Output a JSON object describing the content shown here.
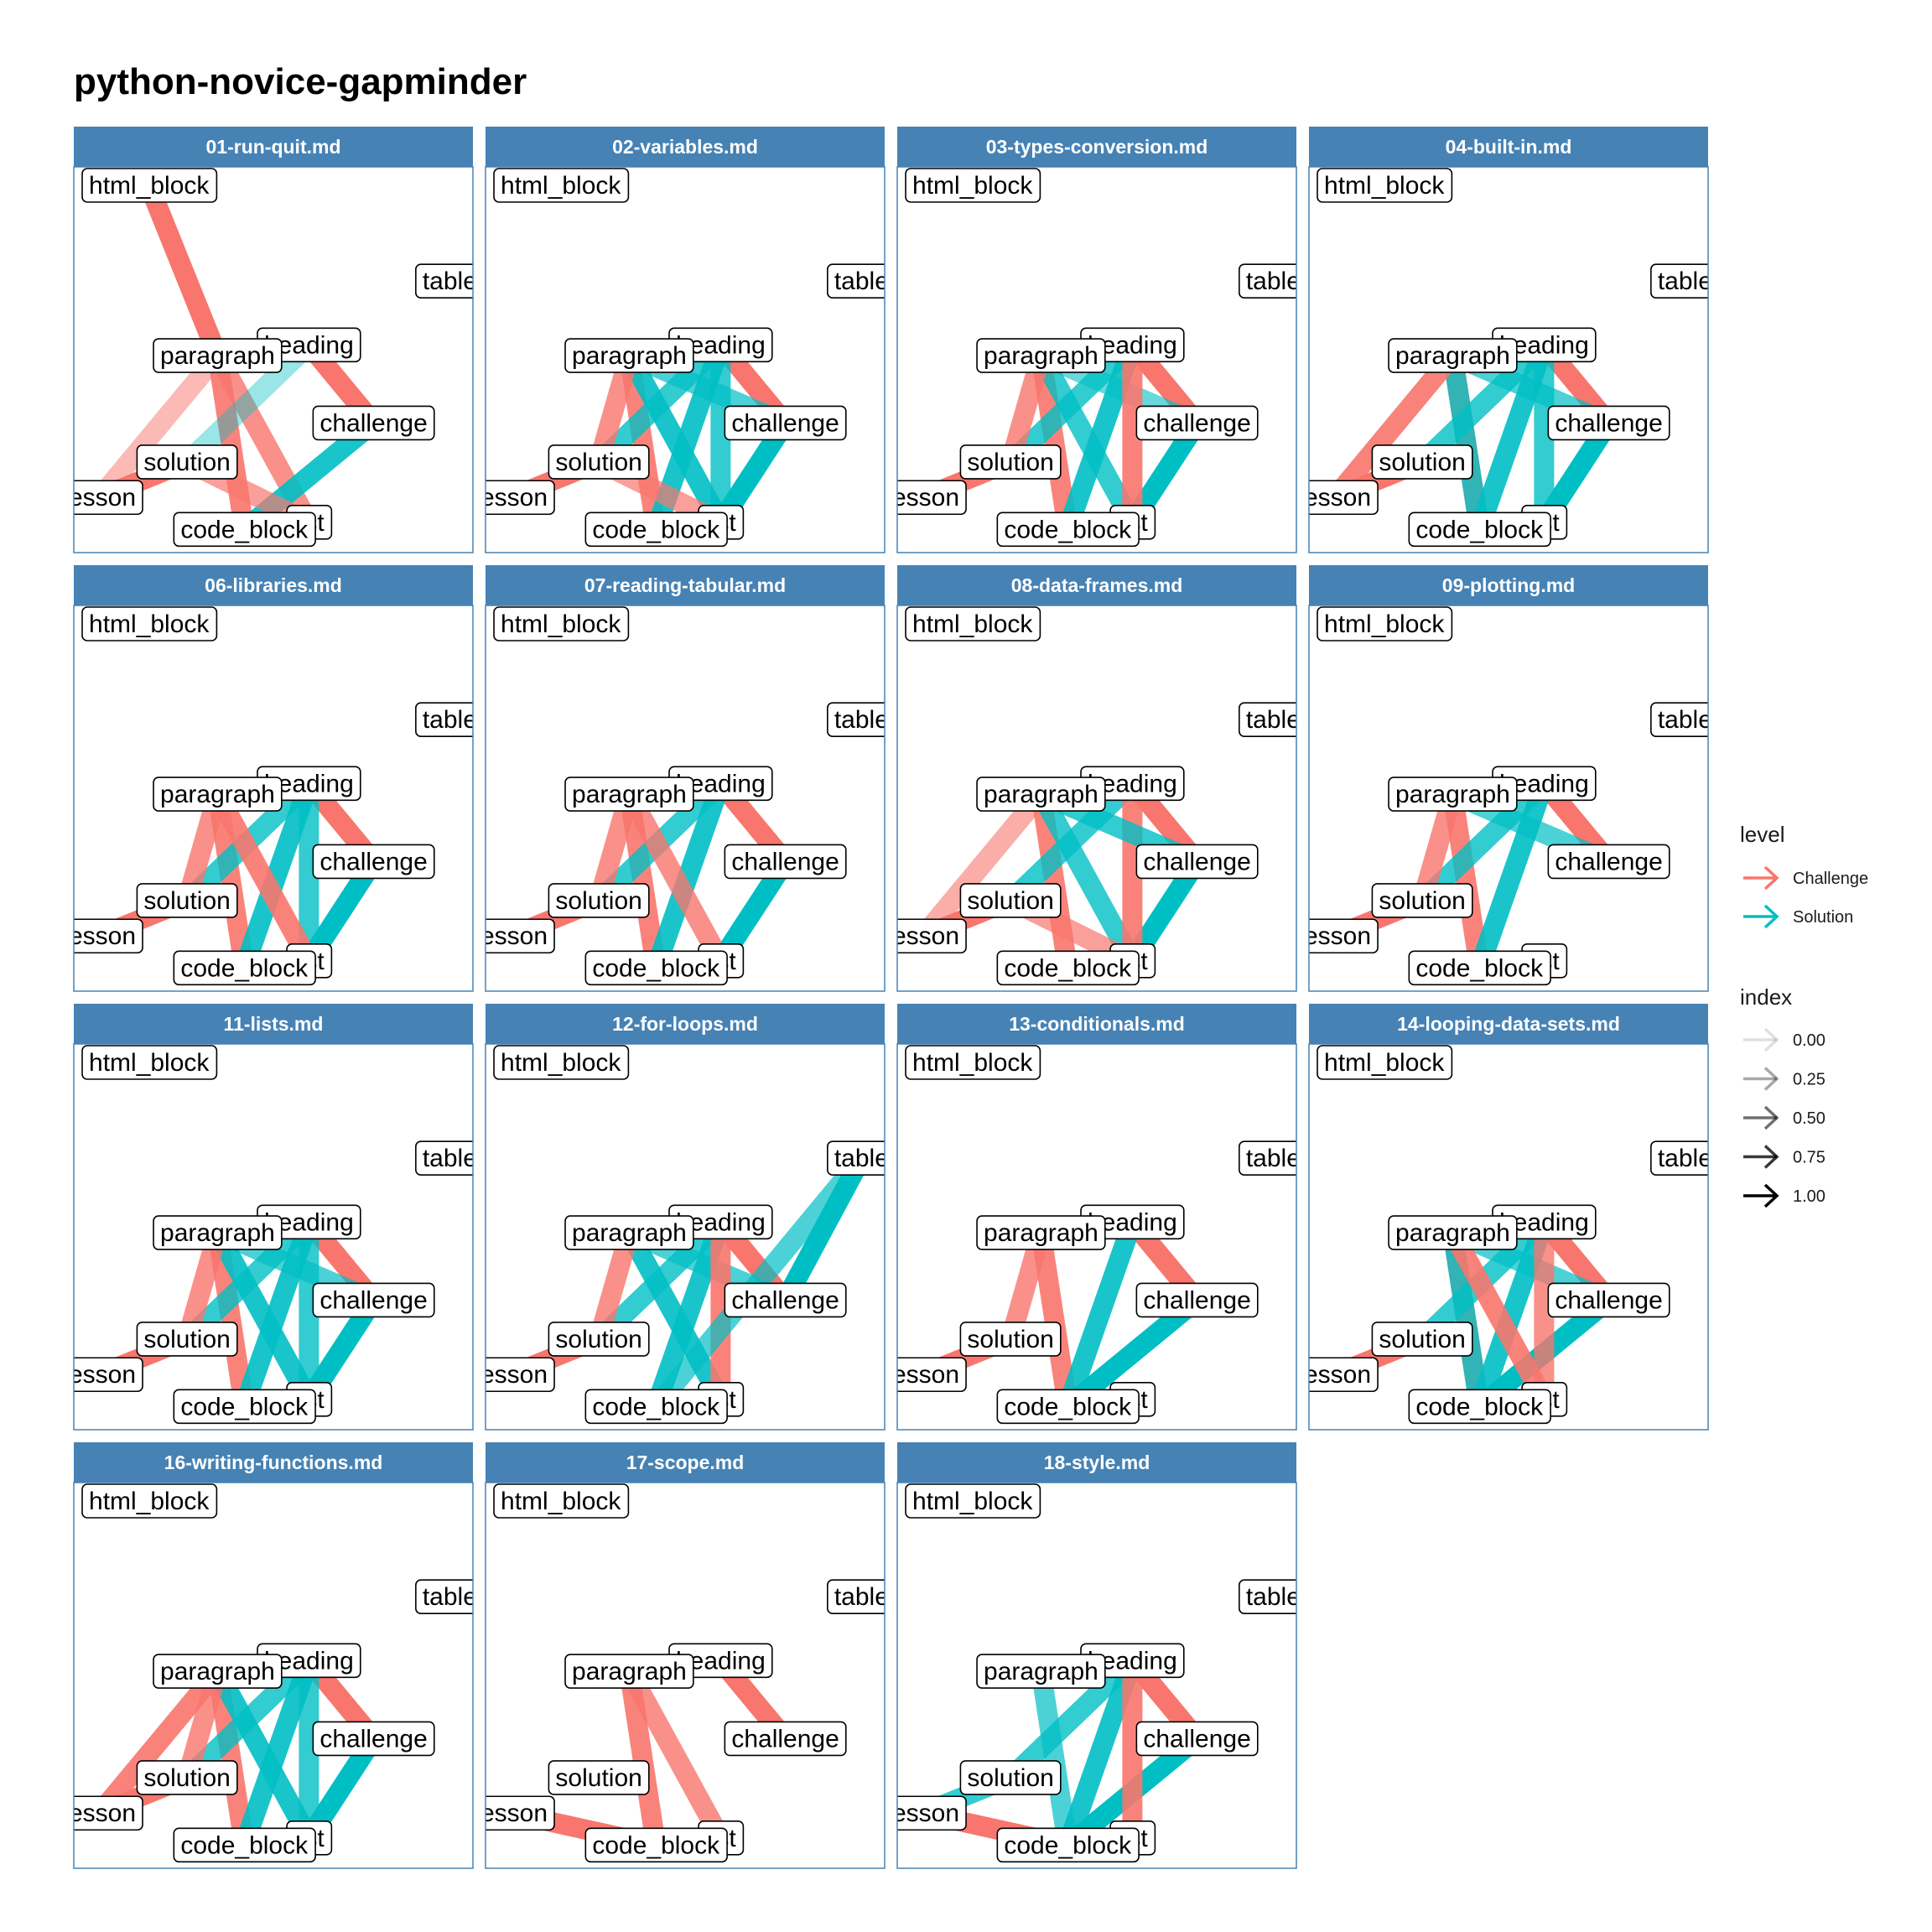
{
  "colors": {
    "challenge": "#F8766D",
    "solution": "#00BFC4",
    "strip": "#4682B4",
    "panel_border": "#4682B4",
    "label_border": "#000000"
  },
  "chart_data": {
    "type": "network-facets",
    "title": "python-novice-gapminder",
    "nodes": [
      {
        "id": "html_block",
        "x": 0.18,
        "y": 1.0
      },
      {
        "id": "table",
        "x": 0.97,
        "y": 0.73
      },
      {
        "id": "heading",
        "x": 0.6,
        "y": 0.55
      },
      {
        "id": "paragraph",
        "x": 0.36,
        "y": 0.52
      },
      {
        "id": "challenge",
        "x": 0.77,
        "y": 0.33
      },
      {
        "id": "solution",
        "x": 0.28,
        "y": 0.22
      },
      {
        "id": "lesson",
        "x": 0.05,
        "y": 0.12
      },
      {
        "id": "list",
        "x": 0.6,
        "y": 0.05
      },
      {
        "id": "code_block",
        "x": 0.43,
        "y": 0.03
      }
    ],
    "legend": {
      "level": {
        "title": "level",
        "entries": [
          "Challenge",
          "Solution"
        ]
      },
      "index": {
        "title": "index",
        "entries": [
          "0.00",
          "0.25",
          "0.50",
          "0.75",
          "1.00"
        ]
      }
    },
    "panels": [
      {
        "name": "01-run-quit.md",
        "edges": [
          [
            "html_block",
            "paragraph",
            "c",
            1
          ],
          [
            "paragraph",
            "code_block",
            "c",
            0.9
          ],
          [
            "paragraph",
            "lesson",
            "c",
            0.5
          ],
          [
            "paragraph",
            "list",
            "c",
            0.8
          ],
          [
            "heading",
            "challenge",
            "c",
            1
          ],
          [
            "paragraph",
            "heading",
            "s",
            0.8
          ],
          [
            "challenge",
            "code_block",
            "s",
            0.9
          ],
          [
            "heading",
            "solution",
            "s",
            0.4
          ],
          [
            "solution",
            "list",
            "c",
            0.7
          ],
          [
            "lesson",
            "solution",
            "c",
            1
          ]
        ]
      },
      {
        "name": "02-variables.md",
        "edges": [
          [
            "paragraph",
            "code_block",
            "c",
            0.9
          ],
          [
            "heading",
            "challenge",
            "c",
            1
          ],
          [
            "lesson",
            "solution",
            "c",
            1
          ],
          [
            "paragraph",
            "list",
            "s",
            0.9
          ],
          [
            "heading",
            "code_block",
            "s",
            0.9
          ],
          [
            "heading",
            "list",
            "s",
            0.8
          ],
          [
            "challenge",
            "list",
            "s",
            1
          ],
          [
            "solution",
            "heading",
            "s",
            0.8
          ],
          [
            "paragraph",
            "challenge",
            "s",
            0.7
          ],
          [
            "paragraph",
            "solution",
            "c",
            0.8
          ],
          [
            "solution",
            "list",
            "c",
            0.7
          ]
        ]
      },
      {
        "name": "03-types-conversion.md",
        "edges": [
          [
            "paragraph",
            "code_block",
            "c",
            0.9
          ],
          [
            "heading",
            "challenge",
            "c",
            1
          ],
          [
            "lesson",
            "solution",
            "c",
            1
          ],
          [
            "paragraph",
            "list",
            "s",
            0.8
          ],
          [
            "heading",
            "code_block",
            "s",
            0.9
          ],
          [
            "challenge",
            "list",
            "s",
            1
          ],
          [
            "solution",
            "heading",
            "s",
            0.8
          ],
          [
            "paragraph",
            "challenge",
            "s",
            0.6
          ],
          [
            "paragraph",
            "solution",
            "c",
            0.8
          ],
          [
            "heading",
            "list",
            "c",
            0.9
          ]
        ]
      },
      {
        "name": "04-built-in.md",
        "edges": [
          [
            "paragraph",
            "code_block",
            "c",
            0.9
          ],
          [
            "heading",
            "challenge",
            "c",
            1
          ],
          [
            "lesson",
            "solution",
            "c",
            1
          ],
          [
            "paragraph",
            "code_block",
            "s",
            0.8
          ],
          [
            "heading",
            "code_block",
            "s",
            0.9
          ],
          [
            "challenge",
            "list",
            "s",
            1
          ],
          [
            "solution",
            "heading",
            "s",
            0.8
          ],
          [
            "paragraph",
            "challenge",
            "s",
            0.7
          ],
          [
            "paragraph",
            "lesson",
            "c",
            0.9
          ],
          [
            "heading",
            "list",
            "s",
            0.8
          ]
        ]
      },
      {
        "name": "06-libraries.md",
        "edges": [
          [
            "paragraph",
            "code_block",
            "c",
            0.9
          ],
          [
            "heading",
            "challenge",
            "c",
            1
          ],
          [
            "lesson",
            "solution",
            "c",
            1
          ],
          [
            "heading",
            "code_block",
            "s",
            0.9
          ],
          [
            "challenge",
            "list",
            "s",
            1
          ],
          [
            "solution",
            "heading",
            "s",
            0.8
          ],
          [
            "heading",
            "list",
            "s",
            0.8
          ],
          [
            "paragraph",
            "list",
            "c",
            0.9
          ],
          [
            "paragraph",
            "solution",
            "c",
            0.8
          ]
        ]
      },
      {
        "name": "07-reading-tabular.md",
        "edges": [
          [
            "paragraph",
            "code_block",
            "c",
            0.9
          ],
          [
            "heading",
            "challenge",
            "c",
            1
          ],
          [
            "lesson",
            "solution",
            "c",
            1
          ],
          [
            "heading",
            "code_block",
            "s",
            0.9
          ],
          [
            "challenge",
            "list",
            "s",
            1
          ],
          [
            "solution",
            "heading",
            "s",
            0.8
          ],
          [
            "paragraph",
            "solution",
            "c",
            0.8
          ],
          [
            "paragraph",
            "list",
            "c",
            0.8
          ]
        ]
      },
      {
        "name": "08-data-frames.md",
        "edges": [
          [
            "paragraph",
            "code_block",
            "c",
            0.9
          ],
          [
            "heading",
            "challenge",
            "c",
            1
          ],
          [
            "lesson",
            "solution",
            "c",
            1
          ],
          [
            "paragraph",
            "list",
            "s",
            0.8
          ],
          [
            "challenge",
            "list",
            "s",
            1
          ],
          [
            "solution",
            "heading",
            "s",
            0.8
          ],
          [
            "paragraph",
            "lesson",
            "c",
            0.6
          ],
          [
            "heading",
            "list",
            "c",
            0.9
          ],
          [
            "paragraph",
            "challenge",
            "s",
            0.8
          ],
          [
            "solution",
            "list",
            "c",
            0.7
          ]
        ]
      },
      {
        "name": "09-plotting.md",
        "edges": [
          [
            "paragraph",
            "code_block",
            "c",
            0.9
          ],
          [
            "heading",
            "challenge",
            "c",
            1
          ],
          [
            "lesson",
            "solution",
            "c",
            1
          ],
          [
            "heading",
            "code_block",
            "s",
            0.9
          ],
          [
            "solution",
            "heading",
            "s",
            0.8
          ],
          [
            "paragraph",
            "challenge",
            "s",
            0.7
          ],
          [
            "paragraph",
            "solution",
            "c",
            0.8
          ]
        ]
      },
      {
        "name": "11-lists.md",
        "edges": [
          [
            "paragraph",
            "code_block",
            "c",
            0.9
          ],
          [
            "heading",
            "challenge",
            "c",
            1
          ],
          [
            "lesson",
            "solution",
            "c",
            1
          ],
          [
            "paragraph",
            "list",
            "s",
            0.9
          ],
          [
            "heading",
            "code_block",
            "s",
            0.9
          ],
          [
            "heading",
            "list",
            "s",
            0.8
          ],
          [
            "challenge",
            "list",
            "s",
            1
          ],
          [
            "solution",
            "heading",
            "s",
            0.8
          ],
          [
            "paragraph",
            "challenge",
            "s",
            0.7
          ],
          [
            "paragraph",
            "solution",
            "c",
            0.8
          ]
        ]
      },
      {
        "name": "12-for-loops.md",
        "edges": [
          [
            "heading",
            "challenge",
            "c",
            1
          ],
          [
            "lesson",
            "solution",
            "c",
            1
          ],
          [
            "paragraph",
            "list",
            "s",
            0.9
          ],
          [
            "heading",
            "code_block",
            "s",
            0.9
          ],
          [
            "challenge",
            "table",
            "s",
            1
          ],
          [
            "solution",
            "heading",
            "s",
            0.8
          ],
          [
            "paragraph",
            "challenge",
            "s",
            0.7
          ],
          [
            "paragraph",
            "solution",
            "c",
            0.8
          ],
          [
            "heading",
            "list",
            "c",
            0.9
          ],
          [
            "table",
            "code_block",
            "s",
            0.7
          ]
        ]
      },
      {
        "name": "13-conditionals.md",
        "edges": [
          [
            "paragraph",
            "code_block",
            "c",
            0.9
          ],
          [
            "heading",
            "challenge",
            "c",
            1
          ],
          [
            "lesson",
            "solution",
            "c",
            1
          ],
          [
            "heading",
            "code_block",
            "s",
            0.9
          ],
          [
            "challenge",
            "code_block",
            "s",
            1
          ],
          [
            "paragraph",
            "solution",
            "c",
            0.8
          ]
        ]
      },
      {
        "name": "14-looping-data-sets.md",
        "edges": [
          [
            "paragraph",
            "code_block",
            "c",
            0.9
          ],
          [
            "heading",
            "challenge",
            "c",
            1
          ],
          [
            "lesson",
            "solution",
            "c",
            1
          ],
          [
            "paragraph",
            "code_block",
            "s",
            0.8
          ],
          [
            "heading",
            "code_block",
            "s",
            0.9
          ],
          [
            "challenge",
            "code_block",
            "s",
            1
          ],
          [
            "solution",
            "heading",
            "s",
            0.8
          ],
          [
            "paragraph",
            "challenge",
            "s",
            0.7
          ],
          [
            "paragraph",
            "list",
            "c",
            0.9
          ],
          [
            "heading",
            "list",
            "c",
            0.8
          ]
        ]
      },
      {
        "name": "16-writing-functions.md",
        "edges": [
          [
            "paragraph",
            "code_block",
            "c",
            0.9
          ],
          [
            "heading",
            "challenge",
            "c",
            1
          ],
          [
            "lesson",
            "solution",
            "c",
            1
          ],
          [
            "paragraph",
            "list",
            "s",
            0.9
          ],
          [
            "heading",
            "code_block",
            "s",
            0.9
          ],
          [
            "heading",
            "list",
            "s",
            0.8
          ],
          [
            "challenge",
            "list",
            "s",
            1
          ],
          [
            "solution",
            "heading",
            "s",
            0.8
          ],
          [
            "paragraph",
            "solution",
            "c",
            0.8
          ],
          [
            "paragraph",
            "lesson",
            "c",
            0.9
          ]
        ]
      },
      {
        "name": "17-scope.md",
        "edges": [
          [
            "paragraph",
            "code_block",
            "c",
            0.9
          ],
          [
            "heading",
            "challenge",
            "c",
            1
          ],
          [
            "lesson",
            "code_block",
            "c",
            1
          ],
          [
            "paragraph",
            "list",
            "c",
            0.8
          ]
        ]
      },
      {
        "name": "18-style.md",
        "edges": [
          [
            "heading",
            "challenge",
            "c",
            1
          ],
          [
            "lesson",
            "code_block",
            "c",
            1
          ],
          [
            "lesson",
            "solution",
            "s",
            0.8
          ],
          [
            "paragraph",
            "code_block",
            "s",
            0.7
          ],
          [
            "heading",
            "code_block",
            "s",
            0.9
          ],
          [
            "challenge",
            "code_block",
            "s",
            1
          ],
          [
            "solution",
            "heading",
            "s",
            0.8
          ],
          [
            "heading",
            "list",
            "c",
            0.9
          ]
        ]
      }
    ]
  }
}
